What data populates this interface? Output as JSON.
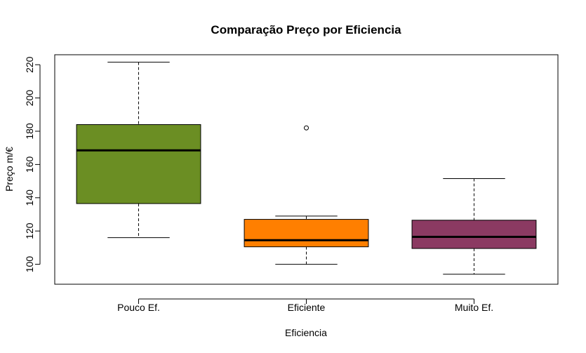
{
  "chart_data": {
    "type": "boxplot",
    "title": "Comparação Preço por Eficiencia",
    "xlabel": "Eficiencia",
    "ylabel": "Preço m/€",
    "ylim": [
      88,
      226
    ],
    "yticks": [
      100,
      120,
      140,
      160,
      180,
      200,
      220
    ],
    "categories": [
      "Pouco Ef.",
      "Eficiente",
      "Muito Ef."
    ],
    "boxes": [
      {
        "category": "Pouco Ef.",
        "min": 116,
        "q1": 136.5,
        "median": 168.5,
        "q3": 184,
        "max": 221.5,
        "outliers": [],
        "color": "#6B8E23"
      },
      {
        "category": "Eficiente",
        "min": 100,
        "q1": 110.5,
        "median": 114.5,
        "q3": 127,
        "max": 129,
        "outliers": [
          182
        ],
        "color": "#FF7F00"
      },
      {
        "category": "Muito Ef.",
        "min": 94,
        "q1": 109.5,
        "median": 116.5,
        "q3": 126.5,
        "max": 151.5,
        "outliers": [],
        "color": "#8B3A62"
      }
    ],
    "grid": false,
    "legend": "none"
  }
}
